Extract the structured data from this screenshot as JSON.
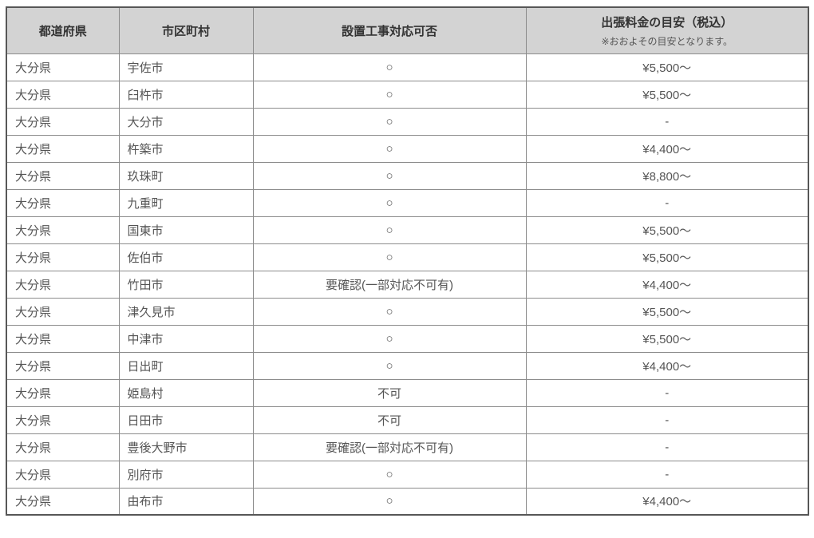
{
  "table": {
    "columns": {
      "prefecture": {
        "label": "都道府県"
      },
      "city": {
        "label": "市区町村"
      },
      "availability": {
        "label": "設置工事対応可否"
      },
      "fee": {
        "label": "出張料金の目安（税込）",
        "note": "※おおよその目安となります。"
      }
    },
    "rows": [
      {
        "prefecture": "大分県",
        "city": "宇佐市",
        "availability": "○",
        "fee": "¥5,500～"
      },
      {
        "prefecture": "大分県",
        "city": "臼杵市",
        "availability": "○",
        "fee": "¥5,500～"
      },
      {
        "prefecture": "大分県",
        "city": "大分市",
        "availability": "○",
        "fee": "-"
      },
      {
        "prefecture": "大分県",
        "city": "杵築市",
        "availability": "○",
        "fee": "¥4,400～"
      },
      {
        "prefecture": "大分県",
        "city": "玖珠町",
        "availability": "○",
        "fee": "¥8,800～"
      },
      {
        "prefecture": "大分県",
        "city": "九重町",
        "availability": "○",
        "fee": "-"
      },
      {
        "prefecture": "大分県",
        "city": "国東市",
        "availability": "○",
        "fee": "¥5,500～"
      },
      {
        "prefecture": "大分県",
        "city": "佐伯市",
        "availability": "○",
        "fee": "¥5,500～"
      },
      {
        "prefecture": "大分県",
        "city": "竹田市",
        "availability": "要確認(一部対応不可有)",
        "fee": "¥4,400～"
      },
      {
        "prefecture": "大分県",
        "city": "津久見市",
        "availability": "○",
        "fee": "¥5,500～"
      },
      {
        "prefecture": "大分県",
        "city": "中津市",
        "availability": "○",
        "fee": "¥5,500～"
      },
      {
        "prefecture": "大分県",
        "city": "日出町",
        "availability": "○",
        "fee": "¥4,400～"
      },
      {
        "prefecture": "大分県",
        "city": "姫島村",
        "availability": "不可",
        "fee": "-"
      },
      {
        "prefecture": "大分県",
        "city": "日田市",
        "availability": "不可",
        "fee": "-"
      },
      {
        "prefecture": "大分県",
        "city": "豊後大野市",
        "availability": "要確認(一部対応不可有)",
        "fee": "-"
      },
      {
        "prefecture": "大分県",
        "city": "別府市",
        "availability": "○",
        "fee": "-"
      },
      {
        "prefecture": "大分県",
        "city": "由布市",
        "availability": "○",
        "fee": "¥4,400～"
      }
    ]
  },
  "colors": {
    "header_background": "#d3d3d3",
    "header_text": "#333333",
    "body_text": "#555555",
    "border_inner": "#8c8c8c",
    "border_outer": "#575757",
    "page_background": "#ffffff"
  }
}
